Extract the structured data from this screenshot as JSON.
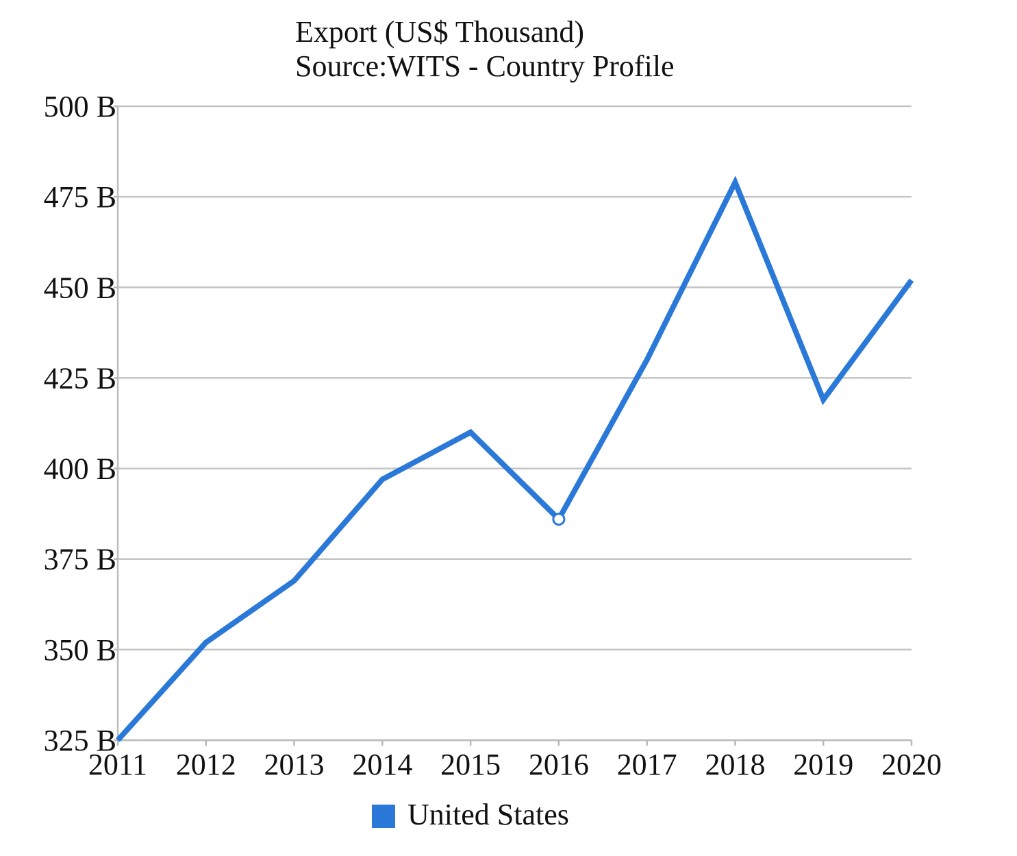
{
  "chart_data": {
    "type": "line",
    "title": "Export (US$ Thousand)",
    "subtitle": "Source:WITS - Country Profile",
    "x": [
      "2011",
      "2012",
      "2013",
      "2014",
      "2015",
      "2016",
      "2017",
      "2018",
      "2019",
      "2020"
    ],
    "series": [
      {
        "name": "United States",
        "color": "#2a78d8",
        "values": [
          325,
          352,
          369,
          397,
          410,
          386,
          430,
          479,
          419,
          452
        ]
      }
    ],
    "y_unit": "B",
    "ylim": [
      325,
      500
    ],
    "y_ticks": [
      325,
      350,
      375,
      400,
      425,
      450,
      475,
      500
    ],
    "y_tick_labels": [
      "325 B",
      "350 B",
      "375 B",
      "400 B",
      "425 B",
      "450 B",
      "475 B",
      "500 B"
    ],
    "highlighted_point": "2016",
    "grid": true,
    "legend_position": "bottom"
  }
}
